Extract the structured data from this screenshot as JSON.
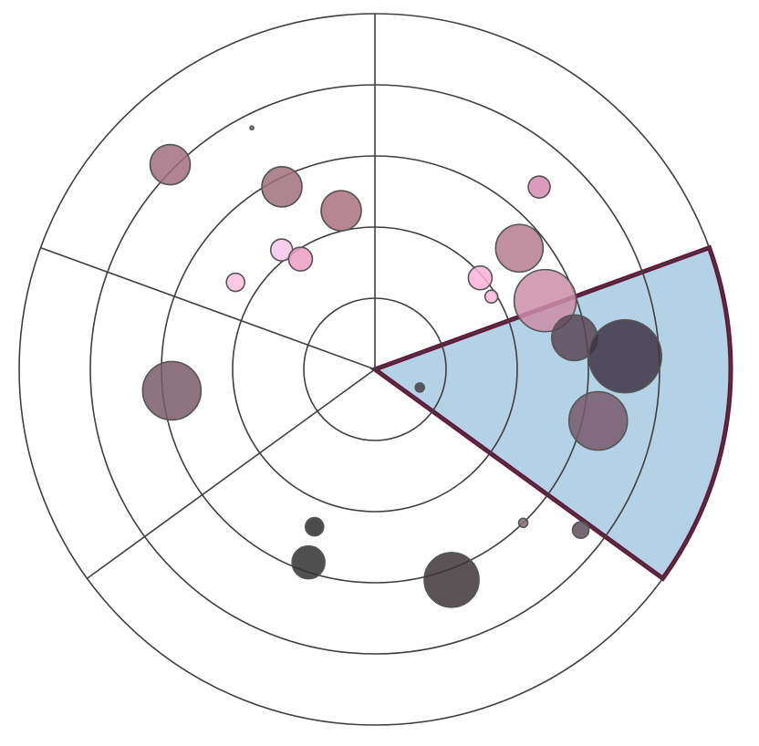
{
  "chart_data": {
    "type": "scatter",
    "coordinate_system": "polar",
    "title": "",
    "ring_levels": [
      1,
      2,
      3,
      4,
      5
    ],
    "sector_boundaries_deg": [
      20,
      90,
      160,
      216,
      324
    ],
    "highlighted_sector_deg": [
      324,
      20
    ],
    "highlight_fill": "#b4d2e6",
    "highlight_stroke": "#6e0f3a",
    "grid": true,
    "legend": "none",
    "points": [
      {
        "r": 2.88,
        "theta_deg": 117,
        "size": 22,
        "color": "#a0707e"
      },
      {
        "r": 2.28,
        "theta_deg": 102,
        "size": 22,
        "color": "#a9717f"
      },
      {
        "r": 4.07,
        "theta_deg": 135,
        "size": 22,
        "color": "#a26f7f"
      },
      {
        "r": 3.81,
        "theta_deg": 117,
        "size": 2,
        "color": "#8e6d78"
      },
      {
        "r": 2.13,
        "theta_deg": 128,
        "size": 12,
        "color": "#f6c6e7"
      },
      {
        "r": 1.87,
        "theta_deg": 124,
        "size": 13,
        "color": "#ec9fc6"
      },
      {
        "r": 2.31,
        "theta_deg": 148,
        "size": 10,
        "color": "#fec0df"
      },
      {
        "r": 1.96,
        "theta_deg": 41,
        "size": 13,
        "color": "#feb1d8"
      },
      {
        "r": 2.65,
        "theta_deg": 40,
        "size": 26,
        "color": "#b57b8f"
      },
      {
        "r": 3.45,
        "theta_deg": 48,
        "size": 12,
        "color": "#d68bb2"
      },
      {
        "r": 1.93,
        "theta_deg": 32,
        "size": 7,
        "color": "#f9b7d9"
      },
      {
        "r": 2.58,
        "theta_deg": 22,
        "size": 34,
        "color": "#cb8ea8"
      },
      {
        "r": 2.87,
        "theta_deg": 186,
        "size": 32,
        "color": "#7a5c68"
      },
      {
        "r": 2.37,
        "theta_deg": 249,
        "size": 10,
        "color": "#2b2b2b"
      },
      {
        "r": 2.87,
        "theta_deg": 251,
        "size": 18,
        "color": "#333131"
      },
      {
        "r": 3.15,
        "theta_deg": 290,
        "size": 30,
        "color": "#3f353a"
      },
      {
        "r": 2.84,
        "theta_deg": 9,
        "size": 25,
        "color": "#5b4655"
      },
      {
        "r": 3.52,
        "theta_deg": 3,
        "size": 40,
        "color": "#3e3444"
      },
      {
        "r": 3.22,
        "theta_deg": 347,
        "size": 32,
        "color": "#785a6c"
      },
      {
        "r": 0.68,
        "theta_deg": 338,
        "size": 5,
        "color": "#444444"
      },
      {
        "r": 3.0,
        "theta_deg": 314,
        "size": 5,
        "color": "#8a6b78"
      },
      {
        "r": 3.67,
        "theta_deg": 322,
        "size": 9,
        "color": "#5d4d5a"
      }
    ]
  }
}
